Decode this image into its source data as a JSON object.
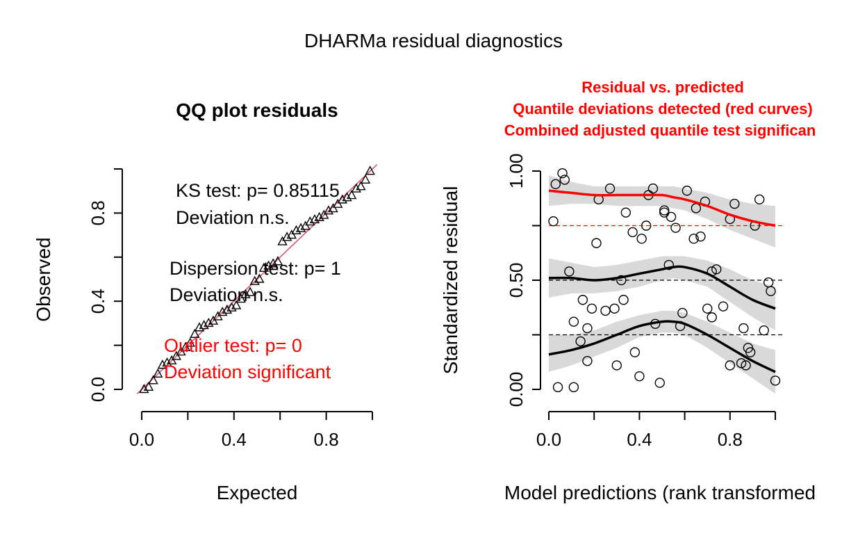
{
  "page": {
    "title": "DHARMa residual diagnostics"
  },
  "chart_data": [
    {
      "type": "scatter",
      "title": "QQ plot residuals",
      "xlabel": "Expected",
      "ylabel": "Observed",
      "xlim": [
        0,
        1
      ],
      "ylim": [
        0,
        1
      ],
      "xticks": [
        "0.0",
        "0.4",
        "0.8"
      ],
      "yticks": [
        "0.0",
        "0.4",
        "0.8"
      ],
      "xtick_values": [
        0,
        0.2,
        0.4,
        0.6,
        0.8,
        1.0
      ],
      "ytick_values": [
        0,
        0.2,
        0.4,
        0.6,
        0.8,
        1.0
      ],
      "marker": "triangle",
      "reference_line": {
        "intercept": 0,
        "slope": 1,
        "color": "#df536b"
      },
      "annotations": {
        "ks_test": "KS test: p= 0.85115",
        "ks_result": "Deviation  n.s.",
        "dispersion_test": "Dispersion test: p= 1",
        "dispersion_result": "Deviation  n.s.",
        "outlier_test": "Outlier test: p= 0",
        "outlier_result": "Deviation  significant"
      },
      "colors": {
        "outlier": "#ff0000"
      },
      "series": [
        {
          "x": [
            0.01,
            0.03,
            0.05,
            0.07,
            0.09,
            0.11,
            0.13,
            0.15,
            0.17,
            0.19,
            0.21,
            0.23,
            0.25,
            0.27,
            0.29,
            0.31,
            0.33,
            0.35,
            0.37,
            0.39,
            0.41,
            0.43,
            0.45,
            0.47,
            0.49,
            0.51,
            0.53,
            0.55,
            0.57,
            0.59,
            0.61,
            0.63,
            0.65,
            0.67,
            0.69,
            0.71,
            0.73,
            0.75,
            0.77,
            0.79,
            0.81,
            0.83,
            0.85,
            0.87,
            0.89,
            0.91,
            0.93,
            0.95,
            0.97,
            0.99
          ],
          "y": [
            0.0,
            0.01,
            0.04,
            0.07,
            0.11,
            0.12,
            0.13,
            0.15,
            0.17,
            0.19,
            0.21,
            0.25,
            0.28,
            0.29,
            0.3,
            0.31,
            0.33,
            0.35,
            0.36,
            0.37,
            0.38,
            0.41,
            0.43,
            0.44,
            0.49,
            0.5,
            0.55,
            0.56,
            0.57,
            0.58,
            0.67,
            0.69,
            0.7,
            0.72,
            0.73,
            0.74,
            0.76,
            0.77,
            0.78,
            0.79,
            0.81,
            0.82,
            0.84,
            0.86,
            0.87,
            0.88,
            0.91,
            0.92,
            0.95,
            0.99
          ]
        }
      ]
    },
    {
      "type": "scatter",
      "title": "Residual vs. predicted",
      "subtitle": "Quantile deviations detected (red curves)",
      "subtitle2": "Combined adjusted quantile test significan",
      "xlabel": "Model predictions (rank transformed",
      "ylabel": "Standardized residual",
      "xlim": [
        0,
        1
      ],
      "ylim": [
        0,
        1
      ],
      "xticks": [
        "0.0",
        "0.4",
        "0.8"
      ],
      "yticks": [
        "0.00",
        "0.50",
        "1.00"
      ],
      "xtick_values": [
        0,
        0.2,
        0.4,
        0.6,
        0.8,
        1.0
      ],
      "ytick_values": [
        0,
        0.25,
        0.5,
        0.75,
        1.0
      ],
      "marker": "circle",
      "reference_lines": [
        {
          "y": 0.25,
          "color": "#000000",
          "style": "dashed"
        },
        {
          "y": 0.5,
          "color": "#000000",
          "style": "dashed"
        },
        {
          "y": 0.75,
          "color": "#ff0000",
          "style": "dashed"
        }
      ],
      "colors": {
        "title": "#ff0000",
        "significant_curve": "#ff0000",
        "curve": "#000000",
        "band": "#d9d9d9"
      },
      "points": {
        "x": [
          0.06,
          0.03,
          0.07,
          0.27,
          0.46,
          0.22,
          0.61,
          0.44,
          0.93,
          0.69,
          0.82,
          0.51,
          0.34,
          0.51,
          0.54,
          0.65,
          0.8,
          0.91,
          0.02,
          0.43,
          0.56,
          0.37,
          0.41,
          0.67,
          0.64,
          0.21,
          0.09,
          0.53,
          0.74,
          0.72,
          0.97,
          0.98,
          0.32,
          0.15,
          0.33,
          0.19,
          0.7,
          0.25,
          0.29,
          0.77,
          0.72,
          0.11,
          0.59,
          0.17,
          0.47,
          0.58,
          0.86,
          0.95,
          0.14,
          0.88,
          0.89,
          0.38,
          0.17,
          0.8,
          0.85,
          0.87,
          0.3,
          0.4,
          0.04,
          0.11,
          0.49,
          1.0
        ],
        "y": [
          0.99,
          0.94,
          0.96,
          0.92,
          0.92,
          0.87,
          0.91,
          0.89,
          0.87,
          0.86,
          0.85,
          0.82,
          0.81,
          0.81,
          0.79,
          0.83,
          0.78,
          0.75,
          0.77,
          0.75,
          0.74,
          0.72,
          0.69,
          0.7,
          0.69,
          0.67,
          0.54,
          0.57,
          0.55,
          0.54,
          0.49,
          0.45,
          0.5,
          0.41,
          0.41,
          0.37,
          0.37,
          0.36,
          0.37,
          0.38,
          0.33,
          0.31,
          0.35,
          0.28,
          0.3,
          0.29,
          0.28,
          0.27,
          0.22,
          0.19,
          0.17,
          0.17,
          0.13,
          0.11,
          0.12,
          0.11,
          0.11,
          0.06,
          0.01,
          0.01,
          0.03,
          0.04
        ]
      },
      "quantile_curves": [
        {
          "quantile": 0.25,
          "significant": false,
          "x": [
            0,
            0.1,
            0.2,
            0.3,
            0.4,
            0.5,
            0.55,
            0.6,
            0.7,
            0.8,
            0.9,
            1.0
          ],
          "y": [
            0.16,
            0.18,
            0.21,
            0.25,
            0.29,
            0.31,
            0.31,
            0.3,
            0.25,
            0.19,
            0.13,
            0.08
          ],
          "lower": [
            0.08,
            0.11,
            0.15,
            0.19,
            0.24,
            0.26,
            0.26,
            0.25,
            0.19,
            0.12,
            0.05,
            -0.02
          ],
          "upper": [
            0.25,
            0.25,
            0.27,
            0.31,
            0.34,
            0.36,
            0.36,
            0.35,
            0.31,
            0.26,
            0.21,
            0.18
          ]
        },
        {
          "quantile": 0.5,
          "significant": false,
          "x": [
            0,
            0.1,
            0.2,
            0.3,
            0.4,
            0.5,
            0.55,
            0.6,
            0.7,
            0.8,
            0.9,
            1.0
          ],
          "y": [
            0.51,
            0.51,
            0.5,
            0.51,
            0.53,
            0.55,
            0.56,
            0.56,
            0.53,
            0.47,
            0.41,
            0.37
          ],
          "lower": [
            0.42,
            0.44,
            0.44,
            0.45,
            0.47,
            0.5,
            0.51,
            0.5,
            0.47,
            0.4,
            0.33,
            0.27
          ],
          "upper": [
            0.6,
            0.58,
            0.56,
            0.57,
            0.59,
            0.61,
            0.61,
            0.61,
            0.59,
            0.55,
            0.5,
            0.47
          ]
        },
        {
          "quantile": 0.75,
          "significant": true,
          "x": [
            0,
            0.1,
            0.2,
            0.3,
            0.4,
            0.5,
            0.55,
            0.6,
            0.7,
            0.8,
            0.9,
            1.0
          ],
          "y": [
            0.91,
            0.9,
            0.89,
            0.89,
            0.89,
            0.89,
            0.88,
            0.87,
            0.84,
            0.8,
            0.77,
            0.75
          ],
          "lower": [
            0.84,
            0.85,
            0.85,
            0.84,
            0.84,
            0.84,
            0.83,
            0.82,
            0.78,
            0.73,
            0.69,
            0.65
          ],
          "upper": [
            0.98,
            0.95,
            0.93,
            0.93,
            0.93,
            0.93,
            0.93,
            0.92,
            0.9,
            0.87,
            0.85,
            0.84
          ]
        }
      ]
    }
  ]
}
